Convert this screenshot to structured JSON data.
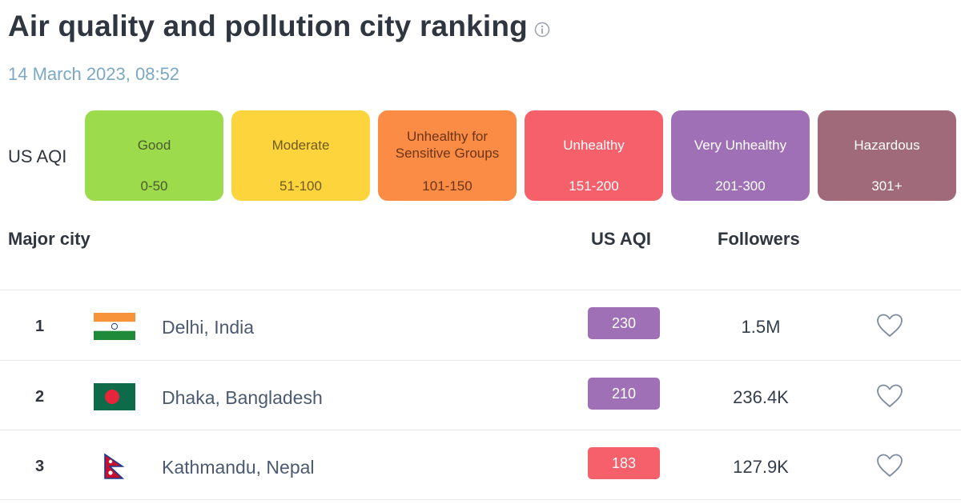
{
  "page": {
    "title": "Air quality and pollution city ranking",
    "date": "14 March 2023, 08:52"
  },
  "legend": {
    "label": "US AQI",
    "levels": [
      {
        "name": "Good",
        "range": "0-50",
        "bg": "#9cdb4c",
        "fg": "#4d5a2c"
      },
      {
        "name": "Moderate",
        "range": "51-100",
        "bg": "#fdd43b",
        "fg": "#6e5a1c"
      },
      {
        "name": "Unhealthy for Sensitive Groups",
        "range": "101-150",
        "bg": "#fb8c46",
        "fg": "#6b3515"
      },
      {
        "name": "Unhealthy",
        "range": "151-200",
        "bg": "#f5606a",
        "fg": "#ffffff"
      },
      {
        "name": "Very Unhealthy",
        "range": "201-300",
        "bg": "#a070b6",
        "fg": "#ffffff"
      },
      {
        "name": "Hazardous",
        "range": "301+",
        "bg": "#a06a7b",
        "fg": "#ffffff"
      }
    ]
  },
  "table": {
    "headers": {
      "city": "Major city",
      "aqi": "US AQI",
      "followers": "Followers"
    },
    "rows": [
      {
        "rank": "1",
        "city": "Delhi, India",
        "aqi": "230",
        "aqi_color": "#a070b6",
        "followers": "1.5M",
        "flag": "india-flag-icon"
      },
      {
        "rank": "2",
        "city": "Dhaka, Bangladesh",
        "aqi": "210",
        "aqi_color": "#a070b6",
        "followers": "236.4K",
        "flag": "bangladesh-flag-icon"
      },
      {
        "rank": "3",
        "city": "Kathmandu, Nepal",
        "aqi": "183",
        "aqi_color": "#f5606a",
        "followers": "127.9K",
        "flag": "nepal-flag-icon"
      }
    ]
  }
}
